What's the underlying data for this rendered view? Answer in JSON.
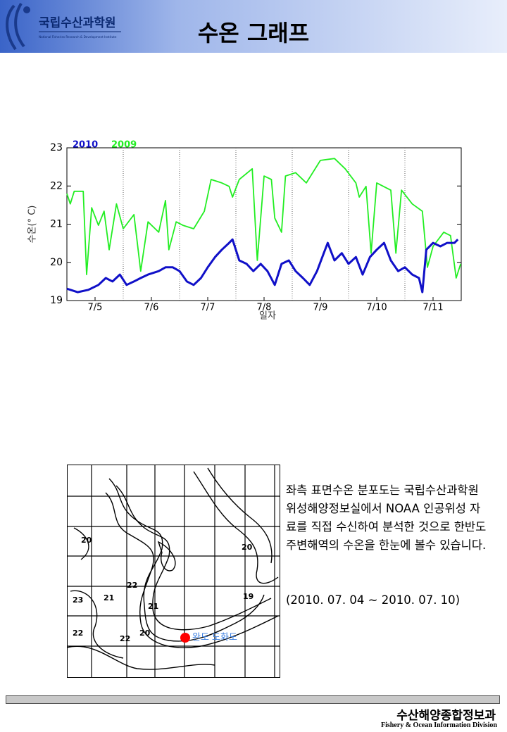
{
  "header": {
    "org_name": "국립수산과학원",
    "org_name_en": "National Fisheries Research & Development Institute",
    "title": "수온 그래프"
  },
  "chart_data": {
    "type": "line",
    "ylabel": "수온(° C)",
    "xlabel": "일자",
    "xlim": [
      5,
      12
    ],
    "ylim": [
      19,
      23
    ],
    "xticks": [
      {
        "value": 5.5,
        "label": "7/5"
      },
      {
        "value": 6.5,
        "label": "7/6"
      },
      {
        "value": 7.5,
        "label": "7/7"
      },
      {
        "value": 8.5,
        "label": "7/8"
      },
      {
        "value": 9.5,
        "label": "7/9"
      },
      {
        "value": 10.5,
        "label": "7/10"
      },
      {
        "value": 11.5,
        "label": "7/11"
      }
    ],
    "xgrid": [
      6,
      7,
      8,
      9,
      10,
      11
    ],
    "yticks": [
      19,
      20,
      21,
      22,
      23
    ],
    "legend": "top-left",
    "series": [
      {
        "name": "2010",
        "color": "#1010c8",
        "x": [
          5.0,
          5.19,
          5.38,
          5.56,
          5.69,
          5.81,
          5.94,
          6.06,
          6.19,
          6.31,
          6.44,
          6.63,
          6.75,
          6.88,
          7.0,
          7.13,
          7.25,
          7.38,
          7.5,
          7.63,
          7.75,
          7.88,
          7.94,
          8.06,
          8.19,
          8.31,
          8.44,
          8.56,
          8.69,
          8.81,
          8.94,
          9.06,
          9.19,
          9.31,
          9.44,
          9.56,
          9.63,
          9.75,
          9.88,
          10.0,
          10.13,
          10.25,
          10.38,
          10.5,
          10.63,
          10.75,
          10.88,
          11.0,
          11.13,
          11.25,
          11.31,
          11.38,
          11.5,
          11.63,
          11.75,
          11.88,
          11.94
        ],
        "values": [
          19.31,
          19.22,
          19.28,
          19.41,
          19.59,
          19.5,
          19.68,
          19.41,
          19.5,
          19.59,
          19.68,
          19.77,
          19.87,
          19.87,
          19.77,
          19.5,
          19.41,
          19.59,
          19.87,
          20.14,
          20.33,
          20.51,
          20.6,
          20.05,
          19.96,
          19.77,
          19.96,
          19.77,
          19.41,
          19.96,
          20.05,
          19.77,
          19.59,
          19.41,
          19.77,
          20.24,
          20.51,
          20.05,
          20.24,
          19.96,
          20.14,
          19.68,
          20.14,
          20.33,
          20.51,
          20.05,
          19.77,
          19.87,
          19.68,
          19.59,
          19.22,
          20.33,
          20.51,
          20.42,
          20.51,
          20.51,
          20.6
        ]
      },
      {
        "name": "2009",
        "color": "#22ee22",
        "x": [
          5.0,
          5.06,
          5.13,
          5.29,
          5.35,
          5.44,
          5.56,
          5.66,
          5.75,
          5.88,
          6.0,
          6.19,
          6.31,
          6.44,
          6.63,
          6.75,
          6.81,
          6.94,
          7.06,
          7.25,
          7.44,
          7.56,
          7.75,
          7.88,
          7.94,
          8.06,
          8.29,
          8.38,
          8.5,
          8.63,
          8.69,
          8.81,
          8.88,
          9.06,
          9.25,
          9.5,
          9.75,
          9.94,
          10.13,
          10.19,
          10.31,
          10.4,
          10.5,
          10.75,
          10.84,
          10.94,
          11.13,
          11.31,
          11.4,
          11.5,
          11.69,
          11.81,
          11.91,
          11.99
        ],
        "values": [
          21.8,
          21.53,
          21.86,
          21.86,
          19.68,
          21.43,
          20.97,
          21.34,
          20.33,
          21.53,
          20.88,
          21.25,
          19.77,
          21.06,
          20.79,
          21.62,
          20.33,
          21.06,
          20.97,
          20.88,
          21.34,
          22.17,
          22.08,
          21.99,
          21.71,
          22.17,
          22.45,
          20.05,
          22.26,
          22.17,
          21.16,
          20.79,
          22.26,
          22.35,
          22.08,
          22.67,
          22.72,
          22.45,
          22.08,
          21.71,
          21.99,
          20.24,
          22.08,
          21.89,
          20.24,
          21.89,
          21.53,
          21.34,
          19.87,
          20.42,
          20.79,
          20.7,
          19.59,
          19.96
        ]
      }
    ]
  },
  "map": {
    "labels": [
      "20",
      "20",
      "21",
      "22",
      "23",
      "21",
      "22",
      "22",
      "20",
      "19"
    ],
    "station": "완도 도화도"
  },
  "description": {
    "text": "좌측 표면수온 분포도는 국립수산과학원 위성해양정보실에서 NOAA 인공위성 자료를 직접 수신하여 분석한 것으로 한반도 주변해역의 수온을 한눈에 볼수 있습니다.",
    "period": "(2010. 07. 04 ~ 2010. 07. 10)"
  },
  "footer": {
    "name": "수산해양종합정보과",
    "name_en": "Fishery & Ocean Information Division"
  }
}
